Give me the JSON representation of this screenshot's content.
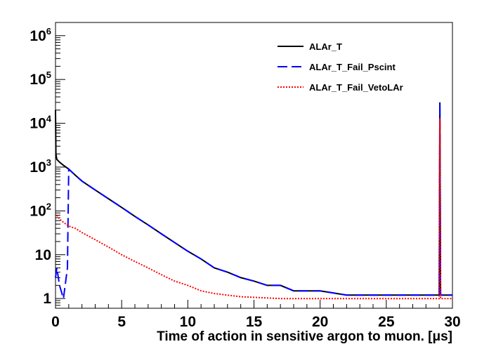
{
  "chart_data": {
    "type": "line",
    "title": "",
    "xlabel": "Time of action in sensitive argon to muon. [μs]",
    "ylabel": "",
    "xlim": [
      0,
      30
    ],
    "ylim": [
      0.6,
      2000000
    ],
    "yscale": "log",
    "x_ticks": [
      {
        "value": 0,
        "label": "0"
      },
      {
        "value": 5,
        "label": "5"
      },
      {
        "value": 10,
        "label": "10"
      },
      {
        "value": 15,
        "label": "15"
      },
      {
        "value": 20,
        "label": "20"
      },
      {
        "value": 25,
        "label": "25"
      },
      {
        "value": 30,
        "label": "30"
      }
    ],
    "y_ticks": [
      {
        "value": 1,
        "base": "1",
        "exp": ""
      },
      {
        "value": 10,
        "base": "10",
        "exp": ""
      },
      {
        "value": 100,
        "base": "10",
        "exp": "2"
      },
      {
        "value": 1000,
        "base": "10",
        "exp": "3"
      },
      {
        "value": 10000,
        "base": "10",
        "exp": "4"
      },
      {
        "value": 100000,
        "base": "10",
        "exp": "5"
      },
      {
        "value": 1000000,
        "base": "10",
        "exp": "6"
      }
    ],
    "legend_position": "top-right",
    "series": [
      {
        "name": "ALAr_T",
        "color": "#000000",
        "style": "solid",
        "x": [
          0,
          0.03,
          0.1,
          0.3,
          0.6,
          1.0,
          1.5,
          2.0,
          3.0,
          4.0,
          5.0,
          6.0,
          7.0,
          8.0,
          9.0,
          10.0,
          11.0,
          12.0,
          13.0,
          14.0,
          15.0,
          16.0,
          17.0,
          18.0,
          20.0,
          22.0,
          25.0,
          28.0,
          29.0,
          29.05,
          29.1,
          30.0
        ],
        "values": [
          20000,
          2000,
          1500,
          1300,
          1100,
          900,
          650,
          480,
          300,
          190,
          120,
          75,
          48,
          30,
          19,
          12,
          8,
          5,
          4,
          3,
          2.5,
          2,
          2,
          1.5,
          1.5,
          1.2,
          1.2,
          1.2,
          1.2,
          30000,
          1.2,
          1.2
        ]
      },
      {
        "name": "ALAr_T_Fail_Pscint",
        "color": "#0000ff",
        "style": "dashed",
        "x": [
          0,
          0.1,
          0.3,
          0.6,
          0.9,
          1.0,
          1.5,
          2.0,
          3.0,
          4.0,
          5.0,
          6.0,
          7.0,
          8.0,
          9.0,
          10.0,
          11.0,
          12.0,
          13.0,
          14.0,
          15.0,
          16.0,
          17.0,
          18.0,
          20.0,
          22.0,
          25.0,
          28.0,
          29.0,
          29.05,
          29.1,
          30.0
        ],
        "values": [
          3,
          5,
          2,
          1,
          5,
          900,
          650,
          480,
          300,
          190,
          120,
          75,
          48,
          30,
          19,
          12,
          8,
          5,
          4,
          3,
          2.5,
          2,
          2,
          1.5,
          1.5,
          1.2,
          1.2,
          1.2,
          1.2,
          30000,
          1.2,
          1.2
        ]
      },
      {
        "name": "ALAr_T_Fail_VetoLAr",
        "color": "#ff0000",
        "style": "dotted",
        "x": [
          0.1,
          0.3,
          0.6,
          1.0,
          1.5,
          2.0,
          3.0,
          4.0,
          5.0,
          6.0,
          7.0,
          8.0,
          9.0,
          10.0,
          11.0,
          12.0,
          14.0,
          17.0,
          20.0,
          23.0,
          26.0,
          28.0,
          29.0,
          29.05,
          29.1,
          30.0
        ],
        "values": [
          80,
          65,
          55,
          45,
          40,
          32,
          22,
          15,
          10,
          7,
          5,
          3.5,
          2.5,
          2,
          1.5,
          1.3,
          1.1,
          1.0,
          1.0,
          1.0,
          1.0,
          1.0,
          1.0,
          13000,
          1.0,
          1.0
        ]
      }
    ]
  }
}
